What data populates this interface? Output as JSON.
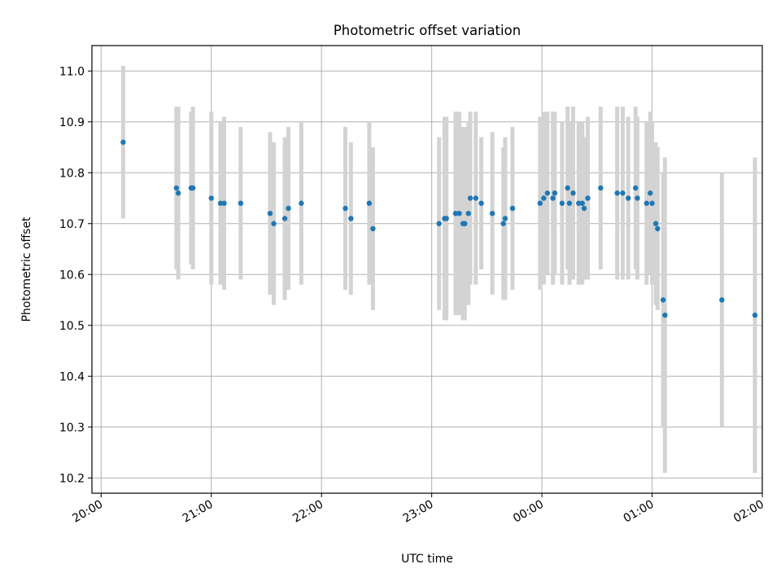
{
  "chart_data": {
    "type": "scatter",
    "title": "Photometric offset variation",
    "xlabel": "UTC time",
    "ylabel": "Photometric offset",
    "x_ticks": [
      "20:00",
      "21:00",
      "22:00",
      "23:00",
      "00:00",
      "01:00",
      "02:00"
    ],
    "y_ticks": [
      "10.2",
      "10.3",
      "10.4",
      "10.5",
      "10.6",
      "10.7",
      "10.8",
      "10.9",
      "11.0"
    ],
    "xlim": [
      "19:55",
      "02:00"
    ],
    "ylim": [
      10.17,
      11.05
    ],
    "grid": true,
    "colors": {
      "points": "#1f77b4",
      "errorbars": "#d3d3d3",
      "grid": "#b0b0b0"
    },
    "series": [
      {
        "x": [
          "20:12",
          "20:41",
          "20:42",
          "20:49",
          "20:50",
          "21:00",
          "21:05",
          "21:07",
          "21:16",
          "21:32",
          "21:34",
          "21:40",
          "21:42",
          "21:49",
          "22:13",
          "22:16",
          "22:26",
          "22:28",
          "23:04",
          "23:07",
          "23:08",
          "23:13",
          "23:15",
          "23:17",
          "23:18",
          "23:20",
          "23:21",
          "23:24",
          "23:27",
          "23:33",
          "23:39",
          "23:40",
          "23:44",
          "23:59",
          "24:01",
          "24:03",
          "24:06",
          "24:07",
          "24:11",
          "24:14",
          "24:15",
          "24:17",
          "24:20",
          "24:22",
          "24:23",
          "24:25",
          "24:32",
          "24:41",
          "24:44",
          "24:47",
          "24:51",
          "24:52",
          "24:57",
          "24:59",
          "25:00",
          "25:02",
          "25:03",
          "25:06",
          "25:07",
          "25:38",
          "25:56"
        ],
        "y": [
          10.86,
          10.77,
          10.76,
          10.77,
          10.77,
          10.75,
          10.74,
          10.74,
          10.74,
          10.72,
          10.7,
          10.71,
          10.73,
          10.74,
          10.73,
          10.71,
          10.74,
          10.69,
          10.7,
          10.71,
          10.71,
          10.72,
          10.72,
          10.7,
          10.7,
          10.72,
          10.75,
          10.75,
          10.74,
          10.72,
          10.7,
          10.71,
          10.73,
          10.74,
          10.75,
          10.76,
          10.75,
          10.76,
          10.74,
          10.77,
          10.74,
          10.76,
          10.74,
          10.74,
          10.73,
          10.75,
          10.77,
          10.76,
          10.76,
          10.75,
          10.77,
          10.75,
          10.74,
          10.76,
          10.74,
          10.7,
          10.69,
          10.55,
          10.52,
          10.55,
          10.52
        ],
        "yerr": [
          0.15,
          0.16,
          0.17,
          0.15,
          0.16,
          0.17,
          0.16,
          0.17,
          0.15,
          0.16,
          0.16,
          0.16,
          0.16,
          0.16,
          0.16,
          0.15,
          0.16,
          0.16,
          0.17,
          0.2,
          0.2,
          0.2,
          0.2,
          0.19,
          0.19,
          0.18,
          0.17,
          0.17,
          0.13,
          0.16,
          0.15,
          0.16,
          0.16,
          0.17,
          0.17,
          0.16,
          0.17,
          0.16,
          0.16,
          0.16,
          0.16,
          0.17,
          0.16,
          0.16,
          0.14,
          0.16,
          0.16,
          0.17,
          0.17,
          0.16,
          0.16,
          0.16,
          0.16,
          0.16,
          0.16,
          0.16,
          0.16,
          0.25,
          0.31,
          0.25,
          0.31
        ]
      }
    ]
  }
}
